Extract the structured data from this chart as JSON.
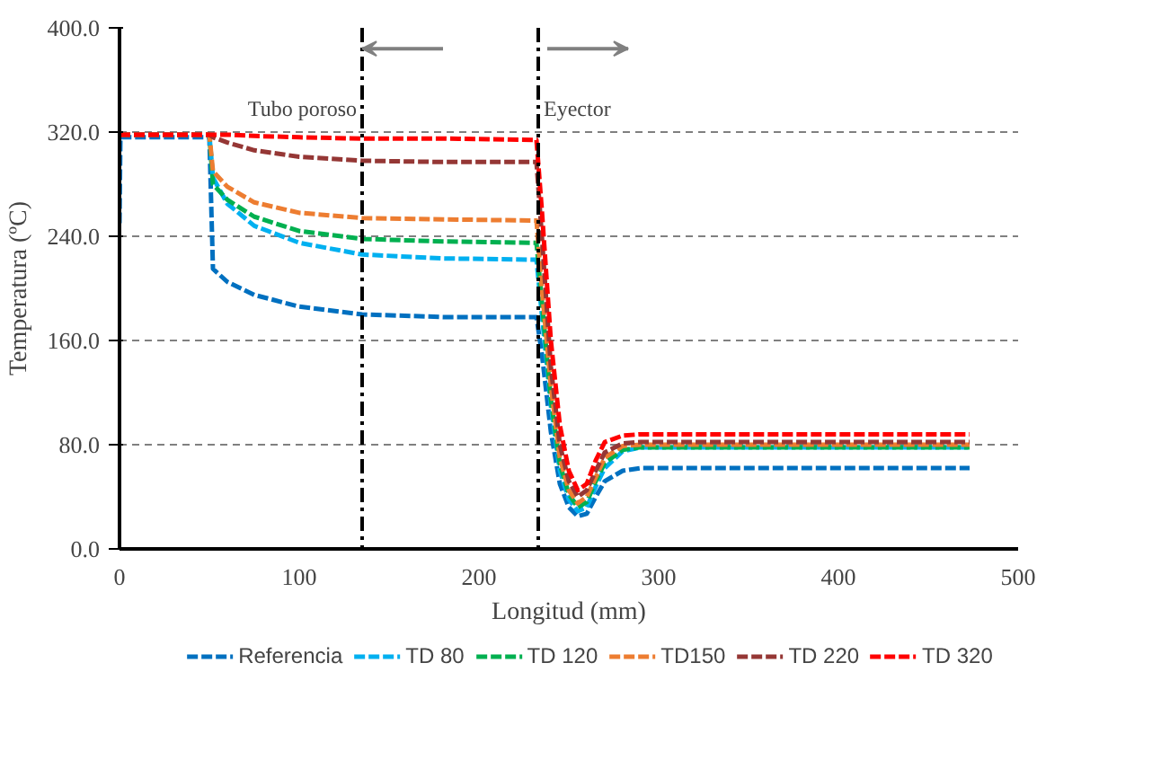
{
  "chart_data": {
    "type": "line",
    "xlabel": "Longitud (mm)",
    "ylabel": "Temperatura (ºC)",
    "xlim": [
      0,
      500
    ],
    "xticks": [
      0,
      100,
      200,
      300,
      400,
      500
    ],
    "ylim": [
      0,
      400
    ],
    "yticks": [
      {
        "value": 0,
        "label": "0.0"
      },
      {
        "value": 80,
        "label": "80.0"
      },
      {
        "value": 160,
        "label": "160.0"
      },
      {
        "value": 240,
        "label": "240.0"
      },
      {
        "value": 320,
        "label": "320.0"
      },
      {
        "value": 400,
        "label": "400.0"
      }
    ],
    "grid": "y",
    "legend": "bottom",
    "line_style": "dashed",
    "marker": "none",
    "x": [
      0,
      0.5,
      50,
      52,
      60,
      75,
      100,
      135,
      180,
      232,
      235,
      240,
      245,
      250,
      255,
      260,
      265,
      270,
      280,
      290,
      350,
      473
    ],
    "series": [
      {
        "name": "Referencia",
        "color": "#0070c0",
        "values": [
          250,
          316,
          316,
          215,
          205,
          195,
          186,
          180,
          178,
          178,
          150,
          90,
          50,
          32,
          25,
          27,
          40,
          52,
          60,
          62,
          62,
          62
        ]
      },
      {
        "name": "TD 80",
        "color": "#00b0f0",
        "values": [
          null,
          null,
          318,
          285,
          265,
          248,
          235,
          226,
          223,
          222,
          180,
          110,
          60,
          38,
          29,
          32,
          48,
          62,
          75,
          78,
          78,
          78
        ]
      },
      {
        "name": "TD 120",
        "color": "#00b050",
        "values": [
          318,
          318,
          318,
          280,
          268,
          255,
          244,
          238,
          236,
          235,
          190,
          115,
          65,
          42,
          32,
          36,
          52,
          66,
          76,
          78,
          78,
          78
        ]
      },
      {
        "name": "TD150",
        "color": "#ed7d31",
        "values": [
          318,
          318,
          318,
          290,
          278,
          266,
          258,
          254,
          253,
          252,
          200,
          125,
          70,
          45,
          35,
          40,
          55,
          70,
          79,
          80,
          80,
          80
        ]
      },
      {
        "name": "TD 220",
        "color": "#953735",
        "values": [
          318,
          318,
          318,
          316,
          312,
          306,
          301,
          298,
          297,
          297,
          240,
          140,
          80,
          52,
          40,
          45,
          60,
          74,
          81,
          82,
          82,
          82
        ]
      },
      {
        "name": "TD 320",
        "color": "#ff0000",
        "values": [
          318,
          318,
          318,
          318,
          318,
          317,
          316,
          315,
          315,
          314,
          260,
          160,
          95,
          60,
          45,
          50,
          68,
          82,
          87,
          88,
          88,
          88
        ]
      }
    ],
    "ref_lines": [
      {
        "axis": "x",
        "value": 135,
        "color": "#000000",
        "line_style": "dashdot"
      },
      {
        "axis": "x",
        "value": 233,
        "color": "#000000",
        "line_style": "dashdot"
      }
    ],
    "annotations": [
      "Tubo poroso",
      "Eyector"
    ]
  }
}
